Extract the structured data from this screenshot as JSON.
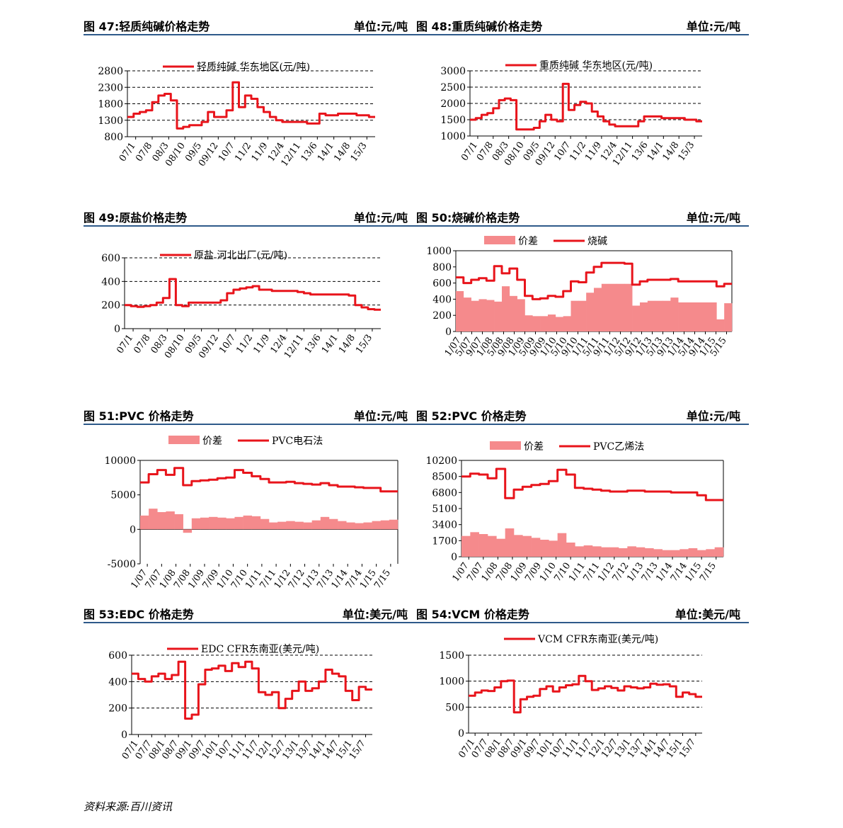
{
  "footer": {
    "source": "资料来源:百川资讯"
  },
  "panels": [
    {
      "title": "图 47:轻质纯碱价格走势",
      "unit": "单位:元/吨",
      "chart_data": {
        "type": "line",
        "ylim": [
          800,
          2800
        ],
        "yticks": [
          "2800",
          "2300",
          "1800",
          "1300",
          "800"
        ],
        "xticks": [
          "07/1",
          "07/8",
          "08/3",
          "08/10",
          "09/5",
          "09/12",
          "10/7",
          "11/2",
          "11/9",
          "12/4",
          "12/11",
          "13/6",
          "14/1",
          "14/8",
          "15/3"
        ],
        "series": [
          {
            "name": "轻质纯碱 华东地区(元/吨)",
            "kind": "line",
            "values": [
              1400,
              1500,
              1550,
              1600,
              1850,
              2050,
              2100,
              1900,
              1050,
              1100,
              1150,
              1150,
              1250,
              1550,
              1400,
              1400,
              1600,
              2450,
              1700,
              2050,
              1950,
              1700,
              1550,
              1400,
              1300,
              1250,
              1250,
              1250,
              1250,
              1200,
              1200,
              1500,
              1450,
              1450,
              1500,
              1500,
              1500,
              1450,
              1450,
              1400
            ]
          }
        ]
      }
    },
    {
      "title": "图 48:重质纯碱价格走势",
      "unit": "单位:元/吨",
      "chart_data": {
        "type": "line",
        "ylim": [
          1000,
          3000
        ],
        "yticks": [
          "3000",
          "2500",
          "2000",
          "1500",
          "1000"
        ],
        "xticks": [
          "07/1",
          "07/8",
          "08/3",
          "08/10",
          "09/5",
          "09/12",
          "10/7",
          "11/2",
          "11/9",
          "12/4",
          "12/11",
          "13/6",
          "14/1",
          "14/8",
          "15/3"
        ],
        "series": [
          {
            "name": "重质纯碱 华东地区(元/吨)",
            "kind": "line",
            "values": [
              1500,
              1550,
              1650,
              1700,
              1850,
              2100,
              2150,
              2100,
              1200,
              1200,
              1200,
              1250,
              1450,
              1650,
              1500,
              1450,
              2600,
              1800,
              1950,
              2050,
              2000,
              1750,
              1600,
              1450,
              1350,
              1300,
              1300,
              1300,
              1300,
              1450,
              1600,
              1600,
              1600,
              1550,
              1550,
              1550,
              1550,
              1500,
              1500,
              1450
            ]
          }
        ]
      }
    },
    {
      "title": "图 49:原盐价格走势",
      "unit": "单位:元/吨",
      "chart_data": {
        "type": "line",
        "ylim": [
          0,
          600
        ],
        "yticks": [
          "600",
          "400",
          "200",
          "0"
        ],
        "xticks": [
          "07/1",
          "07/8",
          "08/3",
          "08/10",
          "09/5",
          "09/12",
          "10/7",
          "11/2",
          "11/9",
          "12/4",
          "12/11",
          "13/6",
          "14/1",
          "14/8",
          "15/3"
        ],
        "series": [
          {
            "name": "原盐 河北出厂(元/吨)",
            "kind": "line",
            "values": [
              200,
              190,
              185,
              190,
              200,
              220,
              260,
              420,
              200,
              190,
              220,
              220,
              220,
              220,
              220,
              240,
              300,
              330,
              340,
              350,
              360,
              330,
              330,
              320,
              320,
              320,
              320,
              310,
              300,
              290,
              290,
              290,
              290,
              290,
              290,
              280,
              200,
              180,
              165,
              160
            ]
          }
        ]
      }
    },
    {
      "title": "图 50:烧碱价格走势",
      "unit": "单位:元/吨",
      "chart_data": {
        "type": "bar",
        "ylim": [
          0,
          1000
        ],
        "yticks": [
          "1000",
          "800",
          "600",
          "400",
          "200",
          "0"
        ],
        "xticks": [
          "1/07",
          "5/07",
          "9/07",
          "1/08",
          "5/08",
          "9/08",
          "1/09",
          "5/09",
          "9/09",
          "1/10",
          "5/10",
          "9/10",
          "1/11",
          "5/11",
          "9/11",
          "1/12",
          "5/12",
          "9/12",
          "1/13",
          "5/13",
          "9/13",
          "1/14",
          "5/14",
          "9/14",
          "1/15",
          "5/15"
        ],
        "legend": "top",
        "series": [
          {
            "name": "价差",
            "kind": "bar",
            "values": [
              500,
              420,
              380,
              400,
              390,
              370,
              560,
              440,
              400,
              200,
              190,
              190,
              210,
              180,
              190,
              380,
              380,
              480,
              540,
              590,
              590,
              590,
              590,
              320,
              360,
              380,
              380,
              380,
              420,
              360,
              360,
              360,
              360,
              360,
              150,
              350
            ]
          },
          {
            "name": "烧碱",
            "kind": "line",
            "values": [
              670,
              600,
              640,
              660,
              630,
              810,
              720,
              780,
              640,
              440,
              400,
              410,
              440,
              430,
              500,
              620,
              610,
              730,
              800,
              850,
              850,
              850,
              840,
              580,
              620,
              640,
              640,
              640,
              650,
              620,
              620,
              620,
              620,
              620,
              560,
              590
            ]
          }
        ]
      }
    },
    {
      "title": "图 51:PVC 价格走势",
      "unit": "单位:元/吨",
      "chart_data": {
        "type": "bar",
        "ylim": [
          -5000,
          10000
        ],
        "yticks": [
          "10000",
          "5000",
          "0",
          "-5000"
        ],
        "xticks": [
          "1/07",
          "7/07",
          "1/08",
          "7/08",
          "1/09",
          "7/09",
          "1/10",
          "7/10",
          "1/11",
          "7/11",
          "1/12",
          "7/12",
          "1/13",
          "7/13",
          "1/14",
          "7/14",
          "1/15",
          "7/15"
        ],
        "legend": "top",
        "series": [
          {
            "name": "价差",
            "kind": "bar",
            "values": [
              2000,
              3000,
              2500,
              2600,
              2200,
              -500,
              1600,
              1700,
              1800,
              1700,
              1600,
              1800,
              2000,
              1900,
              1500,
              1000,
              1100,
              1200,
              1100,
              1000,
              1300,
              1800,
              1500,
              1200,
              1000,
              900,
              1000,
              1200,
              1300,
              1400
            ]
          },
          {
            "name": "PVC电石法",
            "kind": "line",
            "values": [
              6800,
              8000,
              8600,
              7900,
              8900,
              6400,
              7000,
              7100,
              7200,
              7400,
              7500,
              8600,
              8200,
              7700,
              7300,
              6800,
              6800,
              6900,
              6700,
              6600,
              6500,
              6700,
              6400,
              6200,
              6200,
              6100,
              6000,
              6000,
              5500,
              5500
            ]
          }
        ]
      }
    },
    {
      "title": "图 52:PVC 价格走势",
      "unit": "单位:元/吨",
      "chart_data": {
        "type": "bar",
        "ylim": [
          0,
          10200
        ],
        "yticks": [
          "10200",
          "8500",
          "6800",
          "5100",
          "3400",
          "1700",
          "0"
        ],
        "xticks": [
          "1/07",
          "7/07",
          "1/08",
          "7/08",
          "1/09",
          "7/09",
          "1/10",
          "7/10",
          "1/11",
          "7/11",
          "1/12",
          "7/12",
          "1/13",
          "7/13",
          "1/14",
          "7/14",
          "1/15",
          "7/15"
        ],
        "legend": "top",
        "series": [
          {
            "name": "价差",
            "kind": "bar",
            "values": [
              2200,
              2600,
              2400,
              2200,
              1900,
              3000,
              2300,
              2200,
              2000,
              1800,
              1700,
              2500,
              1500,
              1100,
              1200,
              1100,
              1000,
              1000,
              900,
              1100,
              1000,
              900,
              800,
              700,
              700,
              800,
              900,
              700,
              800,
              1000
            ]
          },
          {
            "name": "PVC乙烯法",
            "kind": "line",
            "values": [
              8500,
              8800,
              8700,
              8300,
              9300,
              6200,
              7100,
              7400,
              7600,
              7700,
              8000,
              9200,
              8700,
              7300,
              7200,
              7100,
              7000,
              6900,
              6900,
              7000,
              7000,
              6900,
              6900,
              6900,
              6800,
              6800,
              6800,
              6500,
              6000,
              6000
            ]
          }
        ]
      }
    },
    {
      "title": "图 53:EDC 价格走势",
      "unit": "单位:美元/吨",
      "chart_data": {
        "type": "line",
        "ylim": [
          0,
          600
        ],
        "yticks": [
          "600",
          "400",
          "200",
          "0"
        ],
        "xticks": [
          "07/1",
          "07/7",
          "08/1",
          "08/7",
          "09/1",
          "09/7",
          "10/1",
          "10/7",
          "11/1",
          "11/7",
          "12/1",
          "12/7",
          "13/1",
          "13/7",
          "14/1",
          "14/7",
          "15/1",
          "15/7"
        ],
        "series": [
          {
            "name": "EDC CFR东南亚(美元/吨)",
            "kind": "line",
            "values": [
              460,
              420,
              400,
              440,
              460,
              420,
              450,
              550,
              120,
              150,
              380,
              490,
              500,
              520,
              480,
              540,
              510,
              550,
              500,
              320,
              300,
              320,
              200,
              270,
              330,
              400,
              330,
              350,
              400,
              490,
              460,
              440,
              330,
              260,
              360,
              340
            ]
          }
        ]
      }
    },
    {
      "title": "图 54:VCM 价格走势",
      "unit": "单位:美元/吨",
      "chart_data": {
        "type": "line",
        "ylim": [
          0,
          1500
        ],
        "yticks": [
          "1500",
          "1000",
          "500",
          "0"
        ],
        "xticks": [
          "07/1",
          "07/7",
          "08/1",
          "08/7",
          "09/1",
          "09/7",
          "10/1",
          "10/7",
          "11/1",
          "11/7",
          "12/1",
          "12/7",
          "13/1",
          "13/7",
          "14/1",
          "14/7",
          "15/1",
          "15/7"
        ],
        "series": [
          {
            "name": "VCM CFR东南亚(美元/吨)",
            "kind": "line",
            "values": [
              720,
              780,
              820,
              810,
              880,
              1000,
              1010,
              400,
              650,
              700,
              720,
              850,
              900,
              800,
              880,
              920,
              940,
              1100,
              1000,
              830,
              860,
              900,
              870,
              820,
              900,
              880,
              860,
              880,
              950,
              930,
              940,
              900,
              700,
              780,
              750,
              700
            ]
          }
        ]
      }
    }
  ]
}
